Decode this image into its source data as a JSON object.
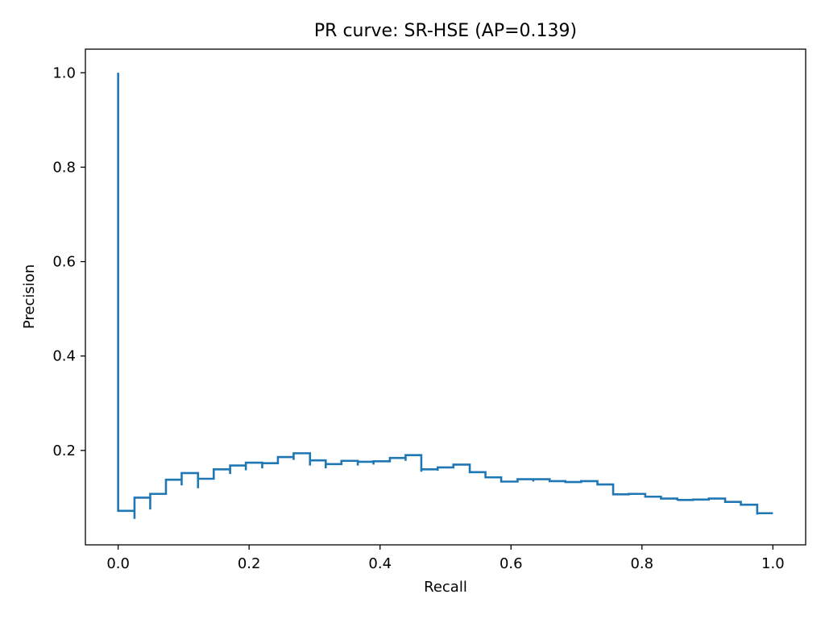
{
  "chart_data": {
    "type": "line",
    "title": "PR curve: SR-HSE (AP=0.139)",
    "xlabel": "Recall",
    "ylabel": "Precision",
    "xlim": [
      -0.05,
      1.05
    ],
    "ylim": [
      0.0,
      1.05
    ],
    "grid": false,
    "legend": "none",
    "line_color": "#1f77b4",
    "x_ticks": [
      "0.0",
      "0.2",
      "0.4",
      "0.6",
      "0.8",
      "1.0"
    ],
    "y_ticks": [
      "0.2",
      "0.4",
      "0.6",
      "0.8",
      "1.0"
    ],
    "series": [
      {
        "drawstyle": "steps",
        "points": [
          [
            0.0,
            1.0
          ],
          [
            0.0,
            0.072
          ],
          [
            0.025,
            0.072
          ],
          [
            0.025,
            0.055
          ],
          [
            0.025,
            0.1
          ],
          [
            0.049,
            0.1
          ],
          [
            0.049,
            0.075
          ],
          [
            0.049,
            0.108
          ],
          [
            0.073,
            0.108
          ],
          [
            0.073,
            0.138
          ],
          [
            0.097,
            0.138
          ],
          [
            0.097,
            0.126
          ],
          [
            0.097,
            0.152
          ],
          [
            0.122,
            0.152
          ],
          [
            0.122,
            0.12
          ],
          [
            0.122,
            0.14
          ],
          [
            0.146,
            0.14
          ],
          [
            0.146,
            0.16
          ],
          [
            0.171,
            0.16
          ],
          [
            0.171,
            0.15
          ],
          [
            0.171,
            0.168
          ],
          [
            0.195,
            0.168
          ],
          [
            0.195,
            0.158
          ],
          [
            0.195,
            0.174
          ],
          [
            0.22,
            0.174
          ],
          [
            0.22,
            0.162
          ],
          [
            0.22,
            0.173
          ],
          [
            0.244,
            0.173
          ],
          [
            0.244,
            0.186
          ],
          [
            0.268,
            0.186
          ],
          [
            0.268,
            0.18
          ],
          [
            0.268,
            0.194
          ],
          [
            0.293,
            0.194
          ],
          [
            0.293,
            0.168
          ],
          [
            0.293,
            0.179
          ],
          [
            0.317,
            0.179
          ],
          [
            0.317,
            0.162
          ],
          [
            0.317,
            0.171
          ],
          [
            0.341,
            0.171
          ],
          [
            0.341,
            0.178
          ],
          [
            0.366,
            0.178
          ],
          [
            0.366,
            0.168
          ],
          [
            0.366,
            0.176
          ],
          [
            0.39,
            0.176
          ],
          [
            0.39,
            0.17
          ],
          [
            0.39,
            0.177
          ],
          [
            0.415,
            0.177
          ],
          [
            0.415,
            0.184
          ],
          [
            0.439,
            0.184
          ],
          [
            0.439,
            0.178
          ],
          [
            0.439,
            0.19
          ],
          [
            0.463,
            0.19
          ],
          [
            0.463,
            0.155
          ],
          [
            0.463,
            0.16
          ],
          [
            0.488,
            0.16
          ],
          [
            0.488,
            0.157
          ],
          [
            0.488,
            0.164
          ],
          [
            0.512,
            0.164
          ],
          [
            0.512,
            0.17
          ],
          [
            0.537,
            0.17
          ],
          [
            0.537,
            0.154
          ],
          [
            0.561,
            0.154
          ],
          [
            0.561,
            0.143
          ],
          [
            0.585,
            0.143
          ],
          [
            0.585,
            0.134
          ],
          [
            0.61,
            0.134
          ],
          [
            0.61,
            0.139
          ],
          [
            0.634,
            0.139
          ],
          [
            0.634,
            0.134
          ],
          [
            0.634,
            0.139
          ],
          [
            0.659,
            0.139
          ],
          [
            0.659,
            0.135
          ],
          [
            0.683,
            0.135
          ],
          [
            0.683,
            0.131
          ],
          [
            0.683,
            0.133
          ],
          [
            0.707,
            0.133
          ],
          [
            0.707,
            0.135
          ],
          [
            0.732,
            0.135
          ],
          [
            0.732,
            0.128
          ],
          [
            0.756,
            0.128
          ],
          [
            0.756,
            0.107
          ],
          [
            0.78,
            0.107
          ],
          [
            0.78,
            0.108
          ],
          [
            0.805,
            0.108
          ],
          [
            0.805,
            0.102
          ],
          [
            0.829,
            0.102
          ],
          [
            0.829,
            0.098
          ],
          [
            0.854,
            0.098
          ],
          [
            0.854,
            0.094
          ],
          [
            0.854,
            0.095
          ],
          [
            0.878,
            0.095
          ],
          [
            0.878,
            0.096
          ],
          [
            0.902,
            0.096
          ],
          [
            0.902,
            0.098
          ],
          [
            0.927,
            0.098
          ],
          [
            0.927,
            0.091
          ],
          [
            0.951,
            0.091
          ],
          [
            0.951,
            0.085
          ],
          [
            0.976,
            0.085
          ],
          [
            0.976,
            0.064
          ],
          [
            0.976,
            0.067
          ],
          [
            1.0,
            0.067
          ]
        ]
      }
    ]
  }
}
